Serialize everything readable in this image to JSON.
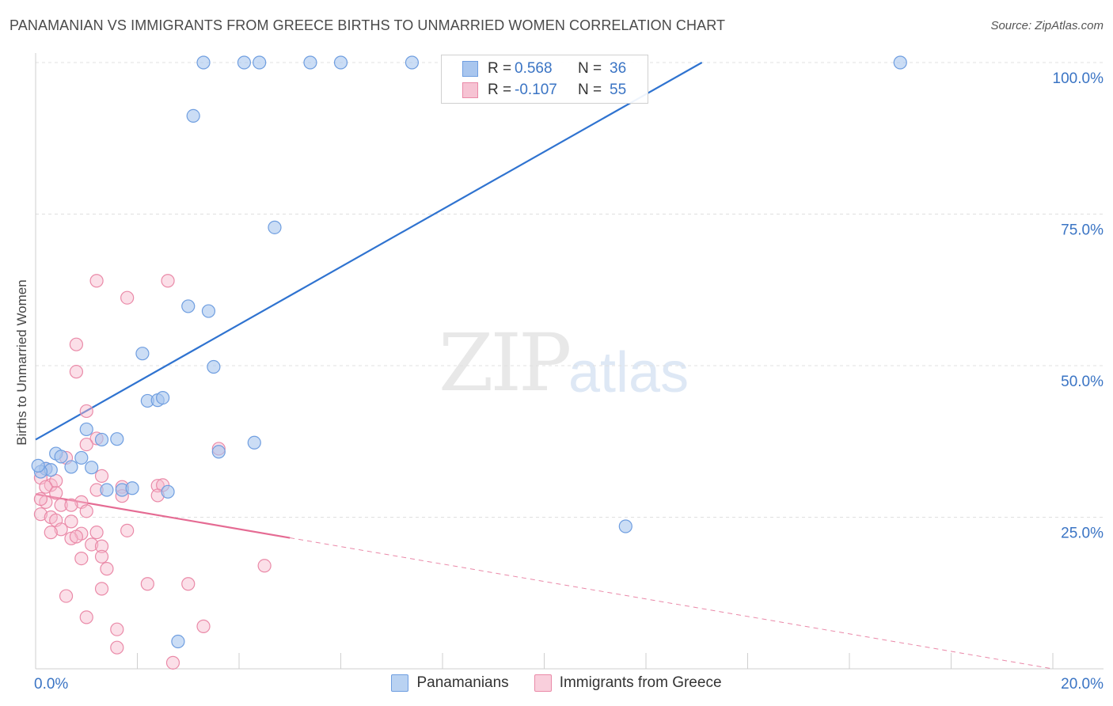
{
  "header": {
    "title": "PANAMANIAN VS IMMIGRANTS FROM GREECE BIRTHS TO UNMARRIED WOMEN CORRELATION CHART",
    "source": "Source: ZipAtlas.com"
  },
  "watermark": {
    "part1": "ZIP",
    "part2": "atlas"
  },
  "legend": {
    "series1": {
      "r_label": "R =",
      "r_value": "0.568",
      "n_label": "N =",
      "n_value": "36"
    },
    "series2": {
      "r_label": "R =",
      "r_value": "-0.107",
      "n_label": "N =",
      "n_value": "55"
    }
  },
  "bottom_legend": {
    "series1": "Panamanians",
    "series2": "Immigrants from Greece"
  },
  "colors": {
    "blue_fill": "#a9c6ee",
    "blue_stroke": "#6f9ee0",
    "blue_line": "#2f73d0",
    "pink_fill": "#f6b8cb",
    "pink_stroke": "#ea8aa8",
    "pink_line": "#e56b93",
    "grid": "#e0e0e0",
    "tick_text": "#3a74c4"
  },
  "chart_data": {
    "type": "scatter",
    "title": "PANAMANIAN VS IMMIGRANTS FROM GREECE BIRTHS TO UNMARRIED WOMEN CORRELATION CHART",
    "xlabel": "",
    "ylabel": "Births to Unmarried Women",
    "xlim": [
      0,
      20
    ],
    "ylim": [
      0,
      100
    ],
    "x_tick_labels": [
      "0.0%",
      "20.0%"
    ],
    "y_ticks": [
      25,
      50,
      75,
      100
    ],
    "y_tick_labels": [
      "25.0%",
      "50.0%",
      "75.0%",
      "100.0%"
    ],
    "grid": true,
    "series": [
      {
        "name": "Panamanians",
        "r": 0.568,
        "n": 36,
        "trend": {
          "x": [
            0,
            13.1
          ],
          "y": [
            37.8,
            100
          ]
        },
        "points": [
          [
            3.3,
            100
          ],
          [
            4.1,
            100
          ],
          [
            4.4,
            100
          ],
          [
            5.4,
            100
          ],
          [
            6.0,
            100
          ],
          [
            7.4,
            100
          ],
          [
            17.0,
            100
          ],
          [
            3.1,
            91.2
          ],
          [
            4.7,
            72.8
          ],
          [
            3.0,
            59.8
          ],
          [
            3.4,
            59.0
          ],
          [
            2.1,
            52.0
          ],
          [
            3.5,
            49.8
          ],
          [
            2.2,
            44.2
          ],
          [
            2.4,
            44.3
          ],
          [
            2.5,
            44.7
          ],
          [
            1.0,
            39.5
          ],
          [
            1.3,
            37.8
          ],
          [
            1.6,
            37.9
          ],
          [
            4.3,
            37.3
          ],
          [
            3.6,
            35.8
          ],
          [
            0.4,
            35.5
          ],
          [
            0.5,
            35.0
          ],
          [
            0.9,
            34.8
          ],
          [
            0.7,
            33.3
          ],
          [
            1.1,
            33.2
          ],
          [
            0.2,
            33.0
          ],
          [
            0.3,
            32.8
          ],
          [
            0.1,
            32.5
          ],
          [
            1.4,
            29.5
          ],
          [
            1.7,
            29.5
          ],
          [
            1.9,
            29.8
          ],
          [
            2.6,
            29.2
          ],
          [
            0.05,
            33.5
          ],
          [
            11.6,
            23.5
          ],
          [
            2.8,
            4.5
          ]
        ]
      },
      {
        "name": "Immigrants from Greece",
        "r": -0.107,
        "n": 55,
        "trend_solid": {
          "x": [
            0,
            5.0
          ],
          "y": [
            28.8,
            21.6
          ]
        },
        "trend_dashed": {
          "x": [
            5.0,
            20.0
          ],
          "y": [
            21.6,
            0
          ]
        },
        "points": [
          [
            1.2,
            64.0
          ],
          [
            2.6,
            64.0
          ],
          [
            1.8,
            61.2
          ],
          [
            0.8,
            53.5
          ],
          [
            0.8,
            49.0
          ],
          [
            1.0,
            42.5
          ],
          [
            1.2,
            38.0
          ],
          [
            1.0,
            37.0
          ],
          [
            3.6,
            36.3
          ],
          [
            0.6,
            34.8
          ],
          [
            0.2,
            33.0
          ],
          [
            0.1,
            31.5
          ],
          [
            0.3,
            30.3
          ],
          [
            0.4,
            31.0
          ],
          [
            1.3,
            31.8
          ],
          [
            0.2,
            30.0
          ],
          [
            2.4,
            30.2
          ],
          [
            2.5,
            30.3
          ],
          [
            1.7,
            30.0
          ],
          [
            1.2,
            29.5
          ],
          [
            0.4,
            29.0
          ],
          [
            1.7,
            28.5
          ],
          [
            2.4,
            28.6
          ],
          [
            0.2,
            27.5
          ],
          [
            0.9,
            27.5
          ],
          [
            0.5,
            27.0
          ],
          [
            0.7,
            27.0
          ],
          [
            1.0,
            26.0
          ],
          [
            0.1,
            25.5
          ],
          [
            0.3,
            25.0
          ],
          [
            0.4,
            24.5
          ],
          [
            0.7,
            24.3
          ],
          [
            0.5,
            23.0
          ],
          [
            0.3,
            22.5
          ],
          [
            1.8,
            22.8
          ],
          [
            1.2,
            22.5
          ],
          [
            0.9,
            22.3
          ],
          [
            0.7,
            21.5
          ],
          [
            0.8,
            21.8
          ],
          [
            1.1,
            20.5
          ],
          [
            1.3,
            20.2
          ],
          [
            1.3,
            18.5
          ],
          [
            0.9,
            18.2
          ],
          [
            1.4,
            16.5
          ],
          [
            4.5,
            17.0
          ],
          [
            2.2,
            14.0
          ],
          [
            3.0,
            14.0
          ],
          [
            1.3,
            13.2
          ],
          [
            0.6,
            12.0
          ],
          [
            1.0,
            8.5
          ],
          [
            3.3,
            7.0
          ],
          [
            1.6,
            6.5
          ],
          [
            1.6,
            3.5
          ],
          [
            2.7,
            1.0
          ],
          [
            0.1,
            28.0
          ]
        ]
      }
    ]
  }
}
